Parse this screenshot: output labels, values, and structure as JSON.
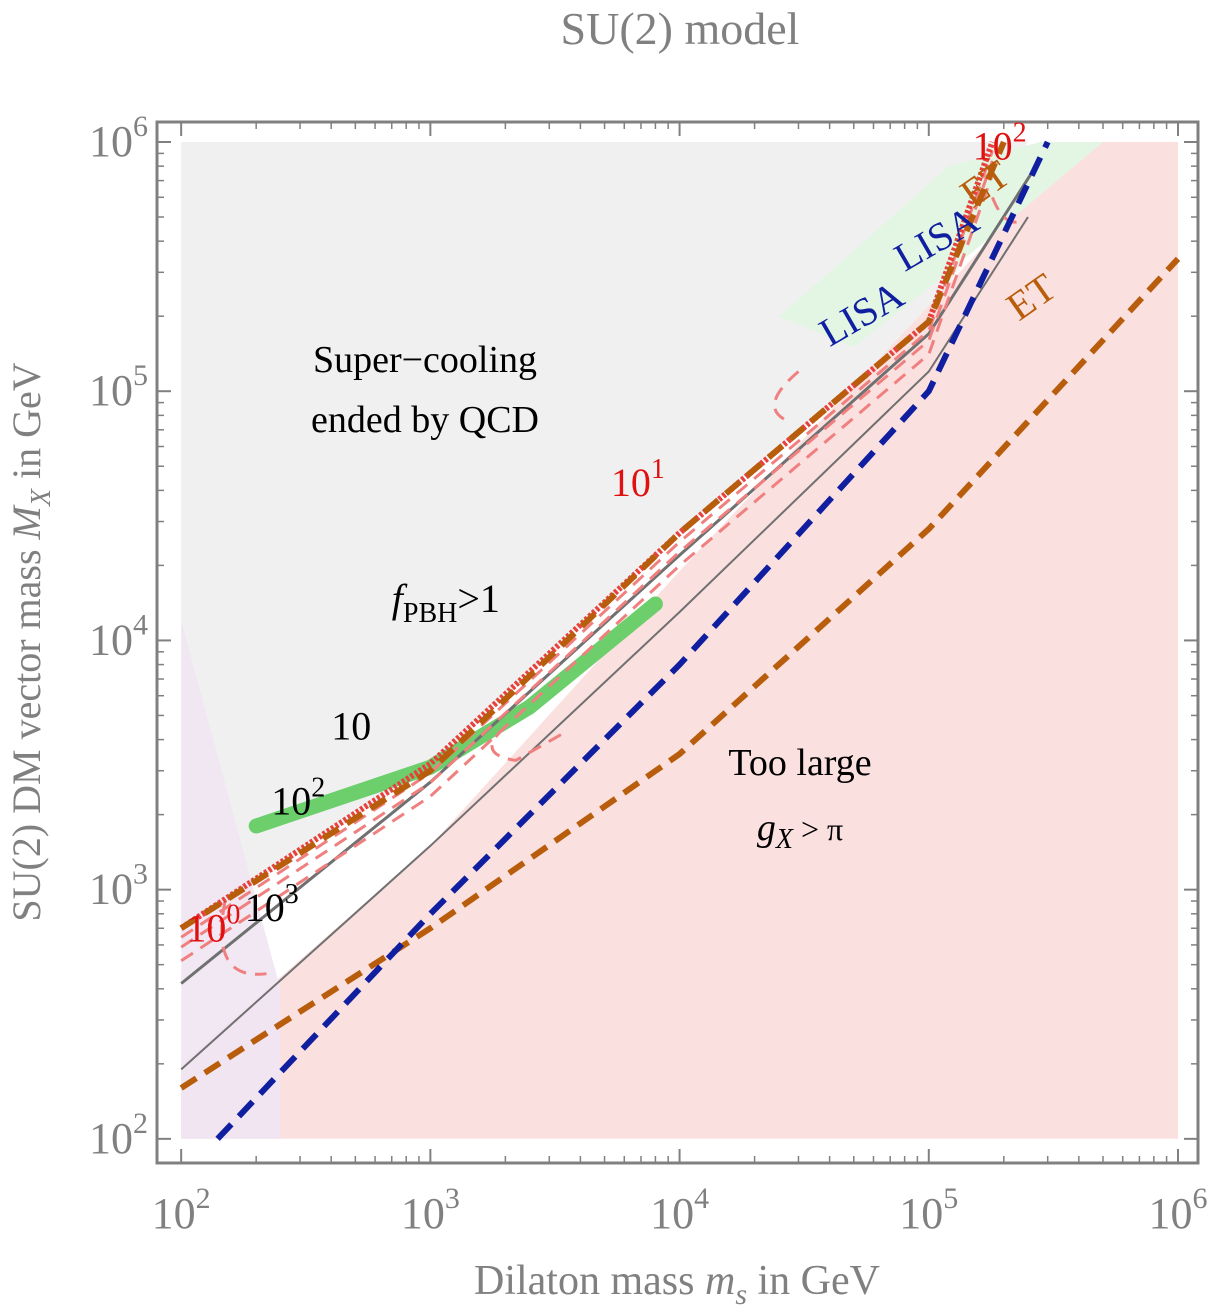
{
  "title": "SU(2) model",
  "chart_data": {
    "type": "line",
    "title": "SU(2) model",
    "xlabel": "Dilaton mass",
    "xlabel_symbol": "m",
    "xlabel_sub": "s",
    "xlabel_unit": "in GeV",
    "ylabel": "SU(2) DM vector mass",
    "ylabel_symbol": "M",
    "ylabel_sub": "X",
    "ylabel_unit": "in GeV",
    "x_scale": "log",
    "y_scale": "log",
    "xlim": [
      80,
      1000000
    ],
    "ylim": [
      80,
      1000000
    ],
    "x_ticks": [
      {
        "value": 100,
        "base": "10",
        "exp": "2"
      },
      {
        "value": 1000,
        "base": "10",
        "exp": "3"
      },
      {
        "value": 10000,
        "base": "10",
        "exp": "4"
      },
      {
        "value": 100000,
        "base": "10",
        "exp": "5"
      },
      {
        "value": 1000000,
        "base": "10",
        "exp": "6"
      }
    ],
    "y_ticks": [
      {
        "value": 100,
        "base": "10",
        "exp": "2"
      },
      {
        "value": 1000,
        "base": "10",
        "exp": "3"
      },
      {
        "value": 10000,
        "base": "10",
        "exp": "4"
      },
      {
        "value": 100000,
        "base": "10",
        "exp": "5"
      },
      {
        "value": 1000000,
        "base": "10",
        "exp": "6"
      }
    ],
    "colors": {
      "supercooling_region": "#f0f0f0",
      "large_coupling_region": "#fbe0e0",
      "purple_region": "#efe6f3",
      "green_light_region": "#e3f6e3",
      "dm_band": "#6ccf6c",
      "lisa": "#0f1fa0",
      "et": "#b85d0c",
      "red_contour": "#e8413c",
      "red_dashed": "#f08080",
      "gray_line": "#707070",
      "axis_text": "#808080"
    },
    "regions": [
      {
        "name": "supercooling",
        "label_line1": "Super−cooling",
        "label_line2": "ended by QCD",
        "polygon": [
          [
            100,
            1000000
          ],
          [
            100,
            700
          ],
          [
            1000,
            3100
          ],
          [
            10000,
            27000
          ],
          [
            100000,
            190000
          ],
          [
            250000,
            1000000
          ]
        ]
      },
      {
        "name": "too-large-coupling",
        "label_line1": "Too large",
        "label_symbol": "g",
        "label_sub": "X",
        "label_rel": " > π",
        "polygon": [
          [
            100,
            100
          ],
          [
            100,
            200
          ],
          [
            1000,
            1500
          ],
          [
            10000,
            19000
          ],
          [
            100000,
            220000
          ],
          [
            400000,
            1000000
          ],
          [
            1000000,
            1000000
          ],
          [
            1000000,
            100
          ]
        ]
      },
      {
        "name": "purple",
        "polygon": [
          [
            100,
            100
          ],
          [
            100,
            12000
          ],
          [
            250,
            400
          ],
          [
            250,
            100
          ]
        ]
      },
      {
        "name": "green-light",
        "polygon": [
          [
            25000,
            200000
          ],
          [
            40000,
            300000
          ],
          [
            120000,
            800000
          ],
          [
            280000,
            1000000
          ],
          [
            500000,
            1000000
          ],
          [
            120000,
            300000
          ],
          [
            50000,
            150000
          ]
        ]
      }
    ],
    "series": [
      {
        "name": "LISA steep",
        "label": "LISA",
        "style": "dashed",
        "points": [
          [
            140,
            100
          ],
          [
            1000,
            800
          ],
          [
            10000,
            8000
          ],
          [
            100000,
            100000
          ],
          [
            300000,
            1000000
          ]
        ]
      },
      {
        "name": "ET steep",
        "label": "ET",
        "style": "dashed",
        "points": [
          [
            100,
            700
          ],
          [
            1000,
            3000
          ],
          [
            10000,
            27000
          ],
          [
            100000,
            190000
          ],
          [
            200000,
            1000000
          ]
        ]
      },
      {
        "name": "ET shallow",
        "label": "ET",
        "style": "dashed",
        "points": [
          [
            100,
            160
          ],
          [
            200,
            250
          ],
          [
            1000,
            700
          ],
          [
            10000,
            3500
          ],
          [
            100000,
            28000
          ],
          [
            1000000,
            340000
          ]
        ]
      },
      {
        "name": "fPBH boundary",
        "style": "solid",
        "points": [
          [
            100,
            700
          ],
          [
            1000,
            3200
          ],
          [
            10000,
            27000
          ],
          [
            100000,
            190000
          ],
          [
            180000,
            1000000
          ]
        ]
      },
      {
        "name": "gray 10^2",
        "style": "solid",
        "points": [
          [
            100,
            420
          ],
          [
            1000,
            2700
          ],
          [
            10000,
            22000
          ],
          [
            100000,
            170000
          ],
          [
            280000,
            850000
          ]
        ]
      },
      {
        "name": "gray 10^3",
        "style": "solid",
        "points": [
          [
            100,
            190
          ],
          [
            1000,
            1500
          ],
          [
            10000,
            13000
          ],
          [
            100000,
            120000
          ],
          [
            250000,
            500000
          ]
        ]
      },
      {
        "name": "DM band",
        "style": "band",
        "points": [
          [
            200,
            1800
          ],
          [
            1000,
            3100
          ],
          [
            2500,
            5400
          ],
          [
            8000,
            14000
          ]
        ]
      }
    ],
    "annotations": [
      {
        "text": "f",
        "sub": "PBH",
        "rest": ">1",
        "x": 700,
        "y": 13000
      },
      {
        "text": "10",
        "x": 400,
        "y": 4000
      },
      {
        "text": "10",
        "exp": "2",
        "x": 230,
        "y": 2000
      },
      {
        "text": "10",
        "exp": "3",
        "x": 180,
        "y": 750
      },
      {
        "text": "10",
        "exp": "0",
        "x": 105,
        "y": 620,
        "color": "red"
      },
      {
        "text": "10",
        "exp": "1",
        "x": 5300,
        "y": 38000,
        "color": "red"
      },
      {
        "text": "10",
        "exp": "2",
        "x": 150000,
        "y": 850000,
        "color": "red"
      },
      {
        "text": "LISA",
        "x": 40000,
        "y": 150000
      },
      {
        "text": "LISA",
        "x": 80000,
        "y": 300000
      },
      {
        "text": "ET",
        "x": 150000,
        "y": 540000
      },
      {
        "text": "ET",
        "x": 230000,
        "y": 190000
      }
    ]
  }
}
